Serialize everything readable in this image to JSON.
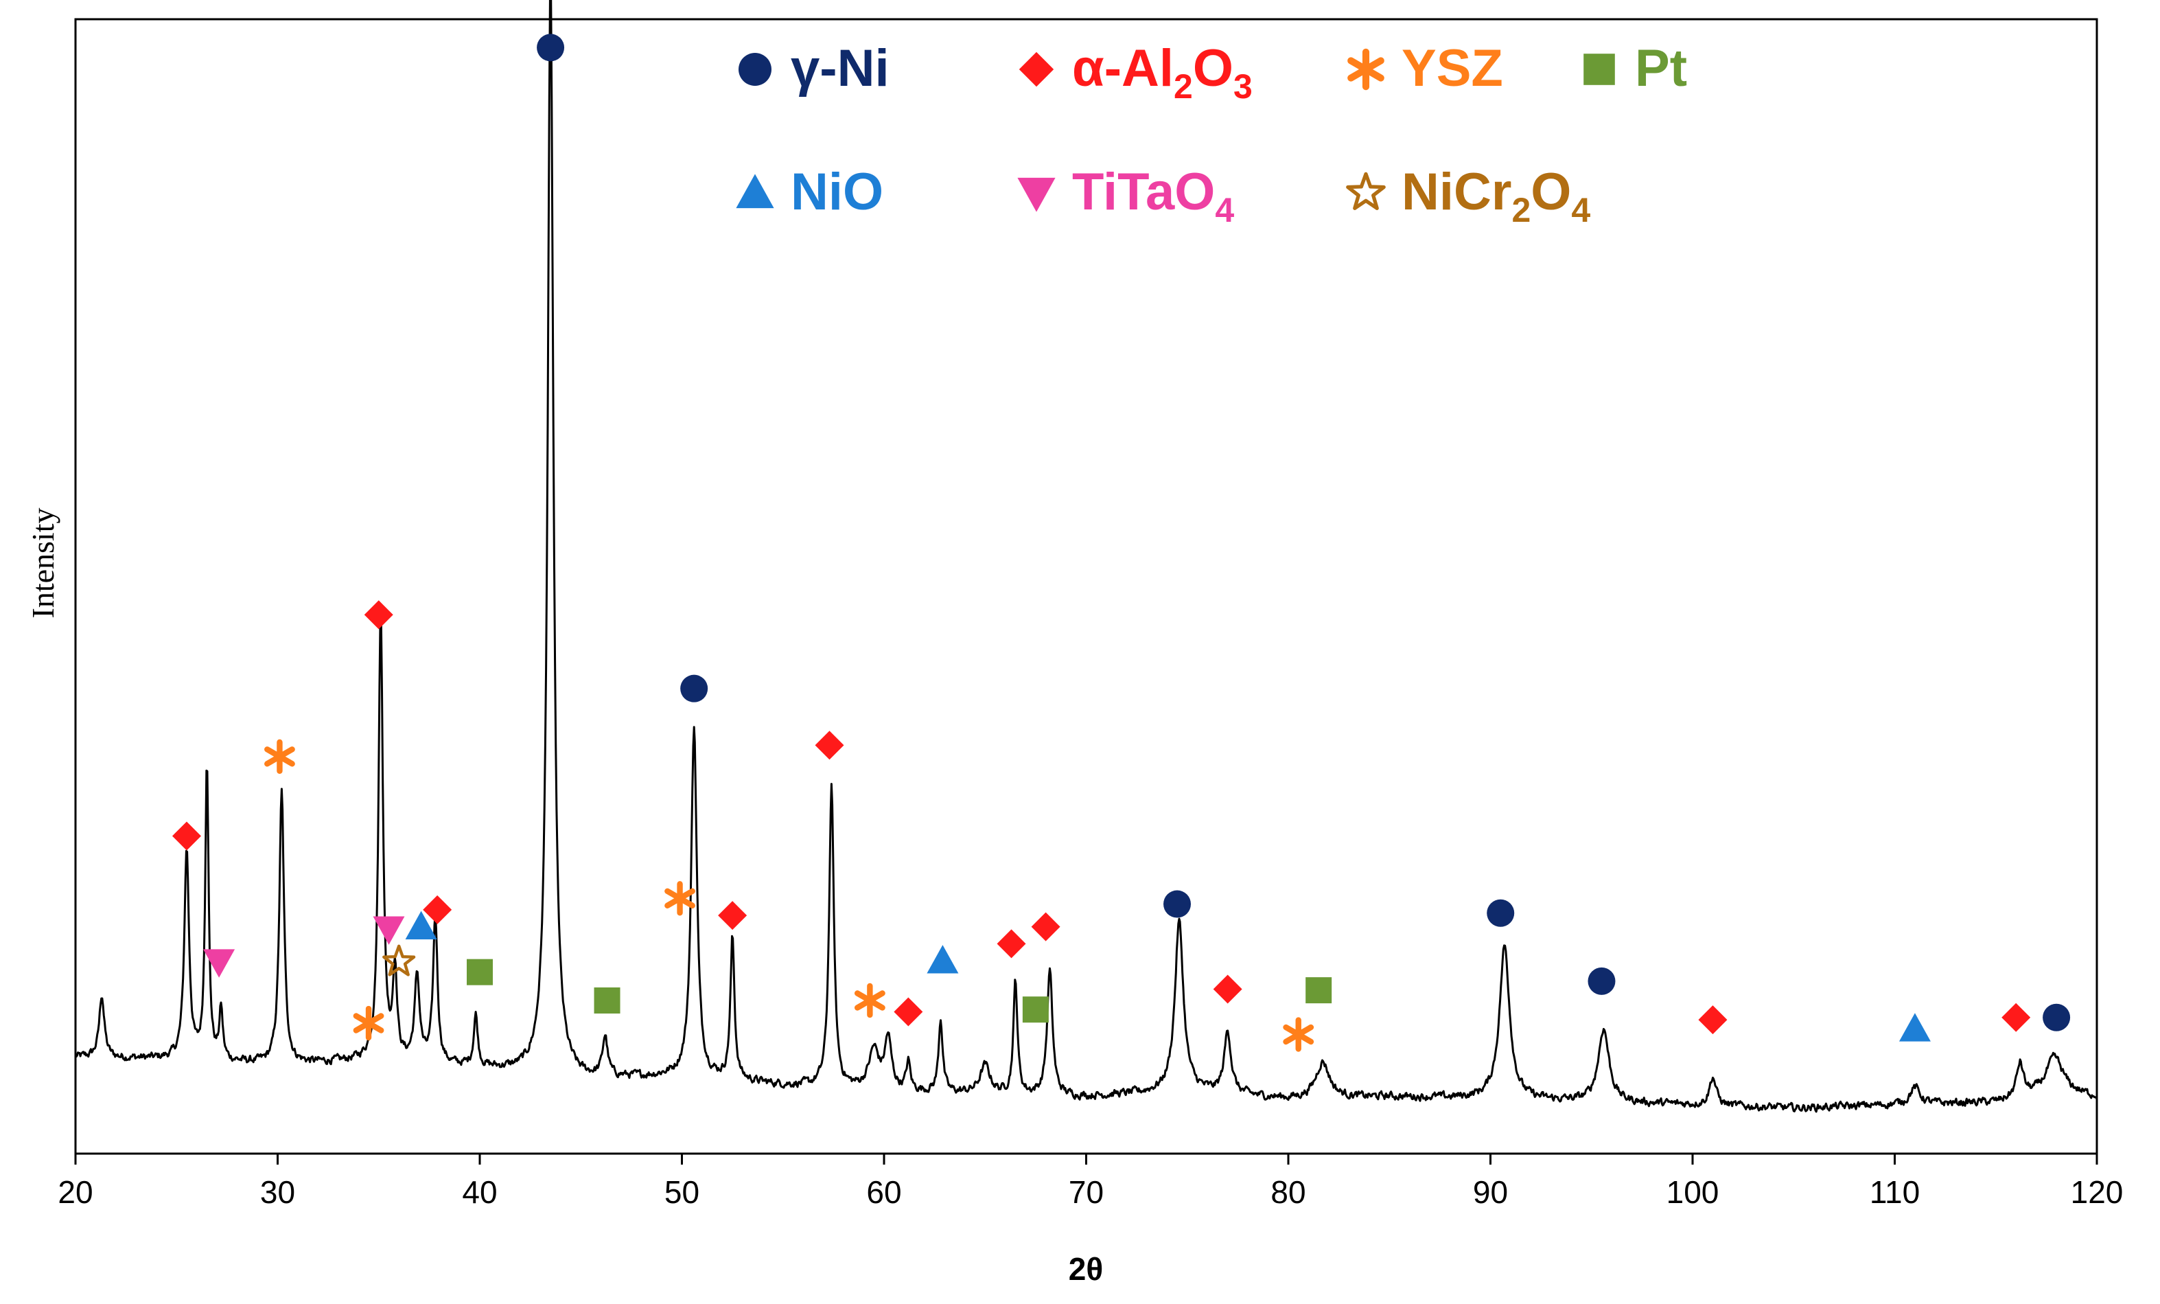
{
  "chart_data": {
    "type": "line",
    "title": "",
    "xlabel": "2θ",
    "ylabel": "Intensity",
    "xlim": [
      20,
      120
    ],
    "ylim": [
      0,
      100
    ],
    "x_ticks": [
      "20",
      "30",
      "40",
      "50",
      "60",
      "70",
      "80",
      "90",
      "100",
      "110",
      "120"
    ],
    "grid": false,
    "legend_position": "top",
    "colors": {
      "line": "#000000",
      "gNi": "#0f2a6b",
      "Al2O3": "#ff1a1a",
      "YSZ": "#ff7f1a",
      "Pt": "#6b9a35",
      "NiO": "#1e7fd6",
      "TiTaO4": "#ee3fa2",
      "NiCr2O4": "#b26e12"
    },
    "legend": [
      {
        "key": "gNi",
        "marker": "circle",
        "name": "γ-Ni",
        "parts": [
          [
            "γ-Ni",
            false
          ]
        ]
      },
      {
        "key": "Al2O3",
        "marker": "diamond",
        "name": "α-Al2O3",
        "parts": [
          [
            "α-Al",
            false
          ],
          [
            "2",
            true
          ],
          [
            "O",
            false
          ],
          [
            "3",
            true
          ]
        ]
      },
      {
        "key": "YSZ",
        "marker": "asterisk",
        "name": "YSZ",
        "parts": [
          [
            "YSZ",
            false
          ]
        ]
      },
      {
        "key": "Pt",
        "marker": "square",
        "name": "Pt",
        "parts": [
          [
            "Pt",
            false
          ]
        ]
      },
      {
        "key": "NiO",
        "marker": "triangle-up",
        "name": "NiO",
        "parts": [
          [
            "NiO",
            false
          ]
        ]
      },
      {
        "key": "TiTaO4",
        "marker": "triangle-down",
        "name": "TiTaO4",
        "parts": [
          [
            "TiTaO",
            false
          ],
          [
            "4",
            true
          ]
        ]
      },
      {
        "key": "NiCr2O4",
        "marker": "star",
        "name": "NiCr2O4",
        "parts": [
          [
            "NiCr",
            false
          ],
          [
            "2",
            true
          ],
          [
            "O",
            false
          ],
          [
            "4",
            true
          ]
        ]
      }
    ],
    "pattern": {
      "baseline": [
        [
          20,
          8.5
        ],
        [
          25,
          8.3
        ],
        [
          30,
          7.8
        ],
        [
          35,
          8.2
        ],
        [
          40,
          7.5
        ],
        [
          45,
          6.5
        ],
        [
          50,
          6.8
        ],
        [
          55,
          6.0
        ],
        [
          60,
          5.5
        ],
        [
          65,
          5.2
        ],
        [
          70,
          5.0
        ],
        [
          75,
          5.5
        ],
        [
          80,
          4.8
        ],
        [
          85,
          5.0
        ],
        [
          90,
          4.8
        ],
        [
          95,
          4.5
        ],
        [
          100,
          4.3
        ],
        [
          105,
          4.0
        ],
        [
          110,
          4.3
        ],
        [
          115,
          4.5
        ],
        [
          118,
          5.5
        ],
        [
          120,
          5.0
        ]
      ],
      "peaks": [
        [
          21.3,
          5.5,
          0.15
        ],
        [
          25.5,
          18.5,
          0.14
        ],
        [
          26.5,
          26.5,
          0.1
        ],
        [
          27.2,
          4.5,
          0.1
        ],
        [
          30.2,
          24.0,
          0.14
        ],
        [
          35.1,
          39.5,
          0.13
        ],
        [
          35.8,
          8.0,
          0.12
        ],
        [
          36.9,
          7.5,
          0.15
        ],
        [
          37.8,
          13.0,
          0.13
        ],
        [
          39.8,
          4.5,
          0.12
        ],
        [
          43.5,
          96.5,
          0.17
        ],
        [
          46.2,
          3.5,
          0.15
        ],
        [
          50.6,
          31.0,
          0.17
        ],
        [
          52.5,
          12.5,
          0.12
        ],
        [
          57.4,
          26.5,
          0.14
        ],
        [
          59.5,
          3.5,
          0.3
        ],
        [
          60.2,
          4.5,
          0.2
        ],
        [
          61.2,
          2.5,
          0.12
        ],
        [
          62.8,
          6.5,
          0.12
        ],
        [
          65.0,
          2.5,
          0.3
        ],
        [
          66.5,
          10.0,
          0.12
        ],
        [
          68.2,
          11.0,
          0.16
        ],
        [
          74.6,
          15.0,
          0.25
        ],
        [
          77.0,
          5.5,
          0.2
        ],
        [
          81.7,
          3.2,
          0.4
        ],
        [
          90.7,
          13.5,
          0.3
        ],
        [
          95.6,
          6.5,
          0.32
        ],
        [
          101.0,
          2.5,
          0.2
        ],
        [
          111.0,
          1.5,
          0.3
        ],
        [
          116.2,
          3.0,
          0.2
        ],
        [
          117.9,
          3.0,
          0.5
        ]
      ],
      "noise": 0.6
    },
    "markers": [
      {
        "phase": "gNi",
        "x": 43.5,
        "y": 97.5
      },
      {
        "phase": "gNi",
        "x": 50.6,
        "y": 41.0
      },
      {
        "phase": "gNi",
        "x": 74.5,
        "y": 22.0
      },
      {
        "phase": "gNi",
        "x": 90.5,
        "y": 21.2
      },
      {
        "phase": "gNi",
        "x": 95.5,
        "y": 15.2
      },
      {
        "phase": "gNi",
        "x": 118.0,
        "y": 12.0
      },
      {
        "phase": "Al2O3",
        "x": 25.5,
        "y": 28.0
      },
      {
        "phase": "Al2O3",
        "x": 35.0,
        "y": 47.5
      },
      {
        "phase": "Al2O3",
        "x": 37.9,
        "y": 21.5
      },
      {
        "phase": "Al2O3",
        "x": 52.5,
        "y": 21.0
      },
      {
        "phase": "Al2O3",
        "x": 57.3,
        "y": 36.0
      },
      {
        "phase": "Al2O3",
        "x": 61.2,
        "y": 12.5
      },
      {
        "phase": "Al2O3",
        "x": 66.3,
        "y": 18.5
      },
      {
        "phase": "Al2O3",
        "x": 68.0,
        "y": 20.0
      },
      {
        "phase": "Al2O3",
        "x": 77.0,
        "y": 14.5
      },
      {
        "phase": "Al2O3",
        "x": 101.0,
        "y": 11.8
      },
      {
        "phase": "Al2O3",
        "x": 116.0,
        "y": 12.0
      },
      {
        "phase": "YSZ",
        "x": 30.1,
        "y": 35.0
      },
      {
        "phase": "YSZ",
        "x": 34.5,
        "y": 11.5
      },
      {
        "phase": "YSZ",
        "x": 49.9,
        "y": 22.5
      },
      {
        "phase": "YSZ",
        "x": 59.3,
        "y": 13.5
      },
      {
        "phase": "YSZ",
        "x": 80.5,
        "y": 10.5
      },
      {
        "phase": "Pt",
        "x": 40.0,
        "y": 16.0
      },
      {
        "phase": "Pt",
        "x": 46.3,
        "y": 13.5
      },
      {
        "phase": "Pt",
        "x": 67.5,
        "y": 12.7
      },
      {
        "phase": "Pt",
        "x": 81.5,
        "y": 14.4
      },
      {
        "phase": "NiO",
        "x": 37.1,
        "y": 20.0
      },
      {
        "phase": "NiO",
        "x": 62.9,
        "y": 17.0
      },
      {
        "phase": "NiO",
        "x": 111.0,
        "y": 11.0
      },
      {
        "phase": "TiTaO4",
        "x": 27.1,
        "y": 16.9
      },
      {
        "phase": "TiTaO4",
        "x": 35.5,
        "y": 19.8
      },
      {
        "phase": "NiCr2O4",
        "x": 36.0,
        "y": 16.9
      }
    ]
  }
}
